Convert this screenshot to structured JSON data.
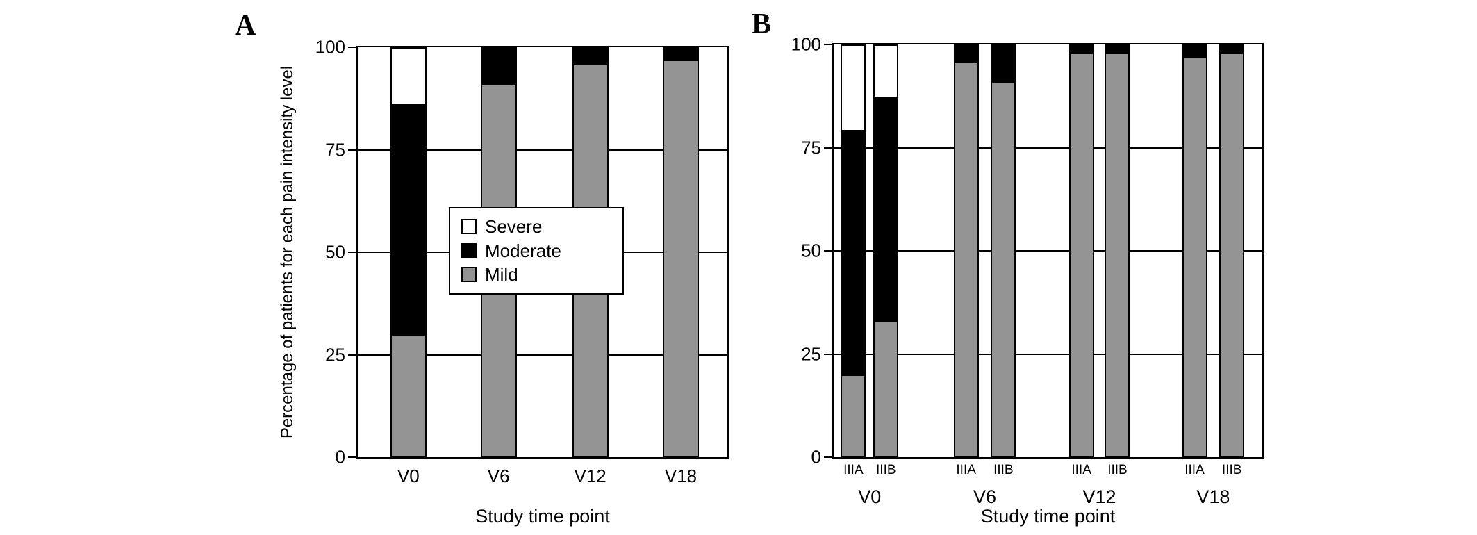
{
  "figure": {
    "panels": [
      {
        "label": "A"
      },
      {
        "label": "B"
      }
    ],
    "y_axis_title": "Percentage of patients for each pain intensity level",
    "x_axis_title": "Study time point"
  },
  "legend": {
    "items": [
      {
        "label": "Severe",
        "color": "#ffffff"
      },
      {
        "label": "Moderate",
        "color": "#000000"
      },
      {
        "label": "Mild",
        "color": "#949494"
      }
    ]
  },
  "chart_data": [
    {
      "type": "bar",
      "stacked": true,
      "panel": "A",
      "title": "",
      "xlabel": "Study time point",
      "ylabel": "Percentage of patients for each pain intensity level",
      "ylim": [
        0,
        100
      ],
      "yticks": [
        0,
        25,
        50,
        75,
        100
      ],
      "grid": true,
      "legend_position": "center",
      "categories": [
        "V0",
        "V6",
        "V12",
        "V18"
      ],
      "series": [
        {
          "name": "Mild",
          "color": "#949494",
          "values": [
            30,
            91,
            96,
            97
          ]
        },
        {
          "name": "Moderate",
          "color": "#000000",
          "values": [
            56,
            9,
            4,
            3
          ]
        },
        {
          "name": "Severe",
          "color": "#ffffff",
          "values": [
            14,
            0,
            0,
            0
          ]
        }
      ]
    },
    {
      "type": "bar",
      "stacked": true,
      "panel": "B",
      "title": "",
      "xlabel": "Study time point",
      "ylabel": "",
      "ylim": [
        0,
        100
      ],
      "yticks": [
        0,
        25,
        50,
        75,
        100
      ],
      "grid": true,
      "groups": [
        "V0",
        "V6",
        "V12",
        "V18"
      ],
      "subcategories": [
        "IIIA",
        "IIIB"
      ],
      "series": [
        {
          "name": "Mild",
          "color": "#949494",
          "values": [
            [
              20,
              33
            ],
            [
              96,
              91
            ],
            [
              98,
              98
            ],
            [
              97,
              98
            ]
          ]
        },
        {
          "name": "Moderate",
          "color": "#000000",
          "values": [
            [
              59,
              54
            ],
            [
              4,
              9
            ],
            [
              2,
              2
            ],
            [
              3,
              2
            ]
          ]
        },
        {
          "name": "Severe",
          "color": "#ffffff",
          "values": [
            [
              21,
              13
            ],
            [
              0,
              0
            ],
            [
              0,
              0
            ],
            [
              0,
              0
            ]
          ]
        }
      ]
    }
  ]
}
